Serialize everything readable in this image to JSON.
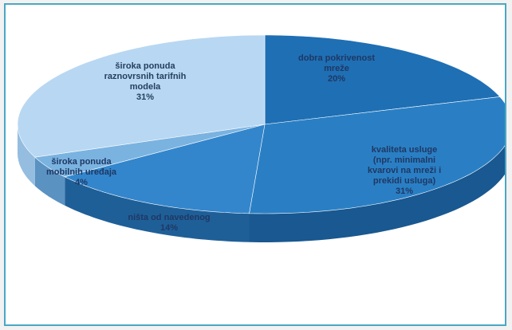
{
  "chart_data": {
    "type": "pie",
    "style": "3d-exploded-oval",
    "unit": "%",
    "slices": [
      {
        "label_lines": [
          "dobra pokrivenost",
          "mreže"
        ],
        "value": 20,
        "value_text": "20%",
        "color": "#1f6fb4",
        "side": "#14507f"
      },
      {
        "label_lines": [
          "kvaliteta usluge",
          "(npr. minimalni",
          "kvarovi na mreži i",
          "prekidi usluga)"
        ],
        "value": 31,
        "value_text": "31%",
        "color": "#2a7fc4",
        "side": "#195890"
      },
      {
        "label_lines": [
          "ništa od navedenog"
        ],
        "value": 14,
        "value_text": "14%",
        "color": "#3386cc",
        "side": "#1f5f98"
      },
      {
        "label_lines": [
          "široka ponuda",
          "mobilnih uređaja"
        ],
        "value": 4,
        "value_text": "4%",
        "color": "#7ab3e0",
        "side": "#5a92c2"
      },
      {
        "label_lines": [
          "široka ponuda",
          "raznovrsnih tarifnih",
          "modela"
        ],
        "value": 31,
        "value_text": "31%",
        "color": "#b8d7f2",
        "side": "#94bde0"
      }
    ],
    "legend": "none"
  }
}
